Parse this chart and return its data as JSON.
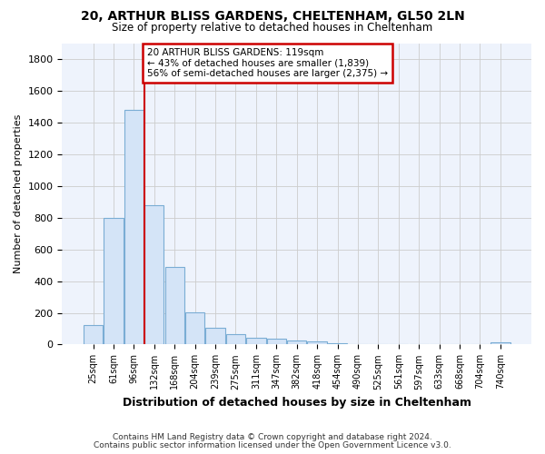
{
  "title1": "20, ARTHUR BLISS GARDENS, CHELTENHAM, GL50 2LN",
  "title2": "Size of property relative to detached houses in Cheltenham",
  "xlabel": "Distribution of detached houses by size in Cheltenham",
  "ylabel": "Number of detached properties",
  "categories": [
    "25sqm",
    "61sqm",
    "96sqm",
    "132sqm",
    "168sqm",
    "204sqm",
    "239sqm",
    "275sqm",
    "311sqm",
    "347sqm",
    "382sqm",
    "418sqm",
    "454sqm",
    "490sqm",
    "525sqm",
    "561sqm",
    "597sqm",
    "633sqm",
    "668sqm",
    "704sqm",
    "740sqm"
  ],
  "values": [
    125,
    800,
    1480,
    880,
    490,
    205,
    105,
    65,
    42,
    35,
    28,
    20,
    8,
    0,
    0,
    0,
    0,
    0,
    0,
    0,
    15
  ],
  "bar_color": "#d4e4f7",
  "bar_edge_color": "#7aadd4",
  "vline_x": 2.5,
  "vline_color": "#cc0000",
  "annotation_text": "20 ARTHUR BLISS GARDENS: 119sqm\n← 43% of detached houses are smaller (1,839)\n56% of semi-detached houses are larger (2,375) →",
  "annotation_box_facecolor": "#ffffff",
  "annotation_box_edgecolor": "#cc0000",
  "ylim": [
    0,
    1900
  ],
  "yticks": [
    0,
    200,
    400,
    600,
    800,
    1000,
    1200,
    1400,
    1600,
    1800
  ],
  "bg_color": "#ffffff",
  "plot_bg_color": "#eef3fc",
  "grid_color": "#cccccc",
  "footer1": "Contains HM Land Registry data © Crown copyright and database right 2024.",
  "footer2": "Contains public sector information licensed under the Open Government Licence v3.0."
}
